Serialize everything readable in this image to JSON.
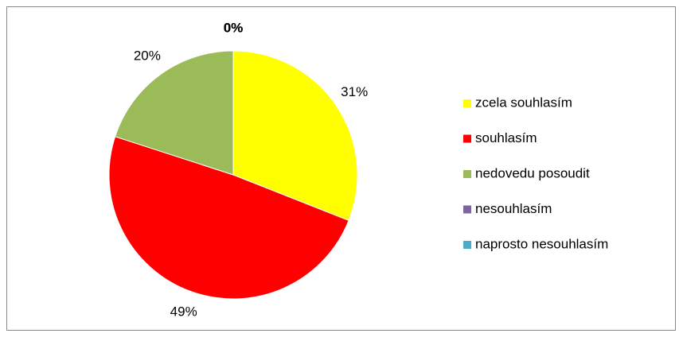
{
  "chart_data": {
    "type": "pie",
    "categories": [
      "zcela souhlasím",
      "souhlasím",
      "nedovedu posoudit",
      "nesouhlasím",
      "naprosto nesouhlasím"
    ],
    "values": [
      31,
      49,
      20,
      0,
      0
    ],
    "value_labels": [
      "31%",
      "49%",
      "20%",
      "0%",
      "0%"
    ],
    "colors": [
      "#ffff00",
      "#ff0000",
      "#9bbb59",
      "#8064a2",
      "#4bacc6"
    ],
    "legend": "right"
  }
}
